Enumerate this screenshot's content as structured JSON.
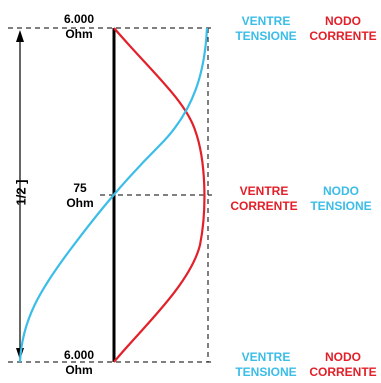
{
  "impedance": {
    "top_value": "6.000",
    "top_unit": "Ohm",
    "mid_value": "75",
    "mid_unit": "Ohm",
    "bottom_value": "6.000",
    "bottom_unit": "Ohm"
  },
  "length_label": "1/2 ]",
  "labels": {
    "top_left_1": "VENTRE",
    "top_left_2": "TENSIONE",
    "top_right_1": "NODO",
    "top_right_2": "CORRENTE",
    "mid_left_1": "VENTRE",
    "mid_left_2": "CORRENTE",
    "mid_right_1": "NODO",
    "mid_right_2": "TENSIONE",
    "bottom_left_1": "VENTRE",
    "bottom_left_2": "TENSIONE",
    "bottom_right_1": "NODO",
    "bottom_right_2": "CORRENTE"
  },
  "colors": {
    "voltage": "#3bbde8",
    "current": "#e2202a",
    "conductor": "#000000"
  }
}
